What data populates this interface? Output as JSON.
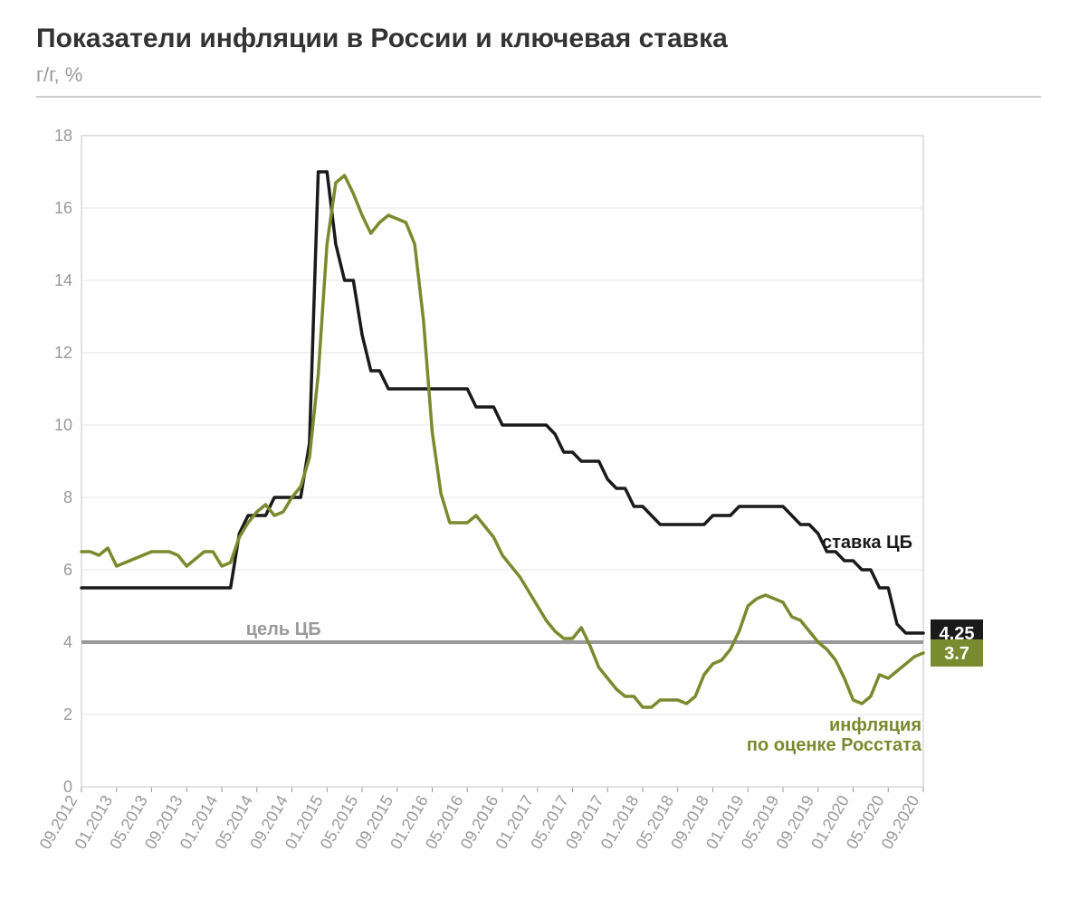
{
  "title": "Показатели инфляции в России и ключевая ставка",
  "subtitle": "г/г, %",
  "chart": {
    "type": "line",
    "background_color": "#ffffff",
    "plot_border_color": "#d9d9d9",
    "grid_color": "#e6e6e6",
    "axis_label_color": "#999999",
    "axis_label_fontsize": 18,
    "title_fontsize": 30,
    "title_color": "#333333",
    "subtitle_fontsize": 22,
    "subtitle_color": "#999999",
    "ylim": [
      0,
      18
    ],
    "ytick_step": 2,
    "yticks": [
      0,
      2,
      4,
      6,
      8,
      10,
      12,
      14,
      16,
      18
    ],
    "x_labels": [
      "09.2012",
      "01.2013",
      "05.2013",
      "09.2013",
      "01.2014",
      "05.2014",
      "09.2014",
      "01.2015",
      "05.2015",
      "09.2015",
      "01.2016",
      "05.2016",
      "09.2016",
      "01.2017",
      "05.2017",
      "09.2017",
      "01.2018",
      "05.2018",
      "09.2018",
      "01.2019",
      "05.2019",
      "09.2019",
      "01.2020",
      "05.2020",
      "09.2020"
    ],
    "target_line": {
      "value": 4,
      "color": "#999999",
      "width": 4,
      "label": "цель ЦБ"
    },
    "series": [
      {
        "name": "ставка ЦБ",
        "label": "ставка ЦБ",
        "color": "#1a1a1a",
        "line_width": 3.5,
        "endpoint_badge_bg": "#1a1a1a",
        "endpoint_badge_text": "4.25",
        "data": [
          {
            "x": "09.2012",
            "y": 5.5
          },
          {
            "x": "10.2012",
            "y": 5.5
          },
          {
            "x": "11.2012",
            "y": 5.5
          },
          {
            "x": "12.2012",
            "y": 5.5
          },
          {
            "x": "01.2013",
            "y": 5.5
          },
          {
            "x": "02.2013",
            "y": 5.5
          },
          {
            "x": "03.2013",
            "y": 5.5
          },
          {
            "x": "04.2013",
            "y": 5.5
          },
          {
            "x": "05.2013",
            "y": 5.5
          },
          {
            "x": "06.2013",
            "y": 5.5
          },
          {
            "x": "07.2013",
            "y": 5.5
          },
          {
            "x": "08.2013",
            "y": 5.5
          },
          {
            "x": "09.2013",
            "y": 5.5
          },
          {
            "x": "10.2013",
            "y": 5.5
          },
          {
            "x": "11.2013",
            "y": 5.5
          },
          {
            "x": "12.2013",
            "y": 5.5
          },
          {
            "x": "01.2014",
            "y": 5.5
          },
          {
            "x": "02.2014",
            "y": 5.5
          },
          {
            "x": "03.2014",
            "y": 7.0
          },
          {
            "x": "04.2014",
            "y": 7.5
          },
          {
            "x": "05.2014",
            "y": 7.5
          },
          {
            "x": "06.2014",
            "y": 7.5
          },
          {
            "x": "07.2014",
            "y": 8.0
          },
          {
            "x": "08.2014",
            "y": 8.0
          },
          {
            "x": "09.2014",
            "y": 8.0
          },
          {
            "x": "10.2014",
            "y": 8.0
          },
          {
            "x": "11.2014",
            "y": 9.5
          },
          {
            "x": "12.2014",
            "y": 17.0
          },
          {
            "x": "01.2015",
            "y": 17.0
          },
          {
            "x": "02.2015",
            "y": 15.0
          },
          {
            "x": "03.2015",
            "y": 14.0
          },
          {
            "x": "04.2015",
            "y": 14.0
          },
          {
            "x": "05.2015",
            "y": 12.5
          },
          {
            "x": "06.2015",
            "y": 11.5
          },
          {
            "x": "07.2015",
            "y": 11.5
          },
          {
            "x": "08.2015",
            "y": 11.0
          },
          {
            "x": "09.2015",
            "y": 11.0
          },
          {
            "x": "10.2015",
            "y": 11.0
          },
          {
            "x": "11.2015",
            "y": 11.0
          },
          {
            "x": "12.2015",
            "y": 11.0
          },
          {
            "x": "01.2016",
            "y": 11.0
          },
          {
            "x": "02.2016",
            "y": 11.0
          },
          {
            "x": "03.2016",
            "y": 11.0
          },
          {
            "x": "04.2016",
            "y": 11.0
          },
          {
            "x": "05.2016",
            "y": 11.0
          },
          {
            "x": "06.2016",
            "y": 10.5
          },
          {
            "x": "07.2016",
            "y": 10.5
          },
          {
            "x": "08.2016",
            "y": 10.5
          },
          {
            "x": "09.2016",
            "y": 10.0
          },
          {
            "x": "10.2016",
            "y": 10.0
          },
          {
            "x": "11.2016",
            "y": 10.0
          },
          {
            "x": "12.2016",
            "y": 10.0
          },
          {
            "x": "01.2017",
            "y": 10.0
          },
          {
            "x": "02.2017",
            "y": 10.0
          },
          {
            "x": "03.2017",
            "y": 9.75
          },
          {
            "x": "04.2017",
            "y": 9.25
          },
          {
            "x": "05.2017",
            "y": 9.25
          },
          {
            "x": "06.2017",
            "y": 9.0
          },
          {
            "x": "07.2017",
            "y": 9.0
          },
          {
            "x": "08.2017",
            "y": 9.0
          },
          {
            "x": "09.2017",
            "y": 8.5
          },
          {
            "x": "10.2017",
            "y": 8.25
          },
          {
            "x": "11.2017",
            "y": 8.25
          },
          {
            "x": "12.2017",
            "y": 7.75
          },
          {
            "x": "01.2018",
            "y": 7.75
          },
          {
            "x": "02.2018",
            "y": 7.5
          },
          {
            "x": "03.2018",
            "y": 7.25
          },
          {
            "x": "04.2018",
            "y": 7.25
          },
          {
            "x": "05.2018",
            "y": 7.25
          },
          {
            "x": "06.2018",
            "y": 7.25
          },
          {
            "x": "07.2018",
            "y": 7.25
          },
          {
            "x": "08.2018",
            "y": 7.25
          },
          {
            "x": "09.2018",
            "y": 7.5
          },
          {
            "x": "10.2018",
            "y": 7.5
          },
          {
            "x": "11.2018",
            "y": 7.5
          },
          {
            "x": "12.2018",
            "y": 7.75
          },
          {
            "x": "01.2019",
            "y": 7.75
          },
          {
            "x": "02.2019",
            "y": 7.75
          },
          {
            "x": "03.2019",
            "y": 7.75
          },
          {
            "x": "04.2019",
            "y": 7.75
          },
          {
            "x": "05.2019",
            "y": 7.75
          },
          {
            "x": "06.2019",
            "y": 7.5
          },
          {
            "x": "07.2019",
            "y": 7.25
          },
          {
            "x": "08.2019",
            "y": 7.25
          },
          {
            "x": "09.2019",
            "y": 7.0
          },
          {
            "x": "10.2019",
            "y": 6.5
          },
          {
            "x": "11.2019",
            "y": 6.5
          },
          {
            "x": "12.2019",
            "y": 6.25
          },
          {
            "x": "01.2020",
            "y": 6.25
          },
          {
            "x": "02.2020",
            "y": 6.0
          },
          {
            "x": "03.2020",
            "y": 6.0
          },
          {
            "x": "04.2020",
            "y": 5.5
          },
          {
            "x": "05.2020",
            "y": 5.5
          },
          {
            "x": "06.2020",
            "y": 4.5
          },
          {
            "x": "07.2020",
            "y": 4.25
          },
          {
            "x": "08.2020",
            "y": 4.25
          },
          {
            "x": "09.2020",
            "y": 4.25
          }
        ]
      },
      {
        "name": "инфляция по оценке Росстата",
        "label": "инфляция\nпо оценке Росстата",
        "color": "#7a8a2e",
        "line_width": 3.5,
        "endpoint_badge_bg": "#7a8a2e",
        "endpoint_badge_text": "3.7",
        "data": [
          {
            "x": "09.2012",
            "y": 6.5
          },
          {
            "x": "10.2012",
            "y": 6.5
          },
          {
            "x": "11.2012",
            "y": 6.4
          },
          {
            "x": "12.2012",
            "y": 6.6
          },
          {
            "x": "01.2013",
            "y": 6.1
          },
          {
            "x": "02.2013",
            "y": 6.2
          },
          {
            "x": "03.2013",
            "y": 6.3
          },
          {
            "x": "04.2013",
            "y": 6.4
          },
          {
            "x": "05.2013",
            "y": 6.5
          },
          {
            "x": "06.2013",
            "y": 6.5
          },
          {
            "x": "07.2013",
            "y": 6.5
          },
          {
            "x": "08.2013",
            "y": 6.4
          },
          {
            "x": "09.2013",
            "y": 6.1
          },
          {
            "x": "10.2013",
            "y": 6.3
          },
          {
            "x": "11.2013",
            "y": 6.5
          },
          {
            "x": "12.2013",
            "y": 6.5
          },
          {
            "x": "01.2014",
            "y": 6.1
          },
          {
            "x": "02.2014",
            "y": 6.2
          },
          {
            "x": "03.2014",
            "y": 6.9
          },
          {
            "x": "04.2014",
            "y": 7.3
          },
          {
            "x": "05.2014",
            "y": 7.6
          },
          {
            "x": "06.2014",
            "y": 7.8
          },
          {
            "x": "07.2014",
            "y": 7.5
          },
          {
            "x": "08.2014",
            "y": 7.6
          },
          {
            "x": "09.2014",
            "y": 8.0
          },
          {
            "x": "10.2014",
            "y": 8.3
          },
          {
            "x": "11.2014",
            "y": 9.1
          },
          {
            "x": "12.2014",
            "y": 11.4
          },
          {
            "x": "01.2015",
            "y": 15.0
          },
          {
            "x": "02.2015",
            "y": 16.7
          },
          {
            "x": "03.2015",
            "y": 16.9
          },
          {
            "x": "04.2015",
            "y": 16.4
          },
          {
            "x": "05.2015",
            "y": 15.8
          },
          {
            "x": "06.2015",
            "y": 15.3
          },
          {
            "x": "07.2015",
            "y": 15.6
          },
          {
            "x": "08.2015",
            "y": 15.8
          },
          {
            "x": "09.2015",
            "y": 15.7
          },
          {
            "x": "10.2015",
            "y": 15.6
          },
          {
            "x": "11.2015",
            "y": 15.0
          },
          {
            "x": "12.2015",
            "y": 12.9
          },
          {
            "x": "01.2016",
            "y": 9.8
          },
          {
            "x": "02.2016",
            "y": 8.1
          },
          {
            "x": "03.2016",
            "y": 7.3
          },
          {
            "x": "04.2016",
            "y": 7.3
          },
          {
            "x": "05.2016",
            "y": 7.3
          },
          {
            "x": "06.2016",
            "y": 7.5
          },
          {
            "x": "07.2016",
            "y": 7.2
          },
          {
            "x": "08.2016",
            "y": 6.9
          },
          {
            "x": "09.2016",
            "y": 6.4
          },
          {
            "x": "10.2016",
            "y": 6.1
          },
          {
            "x": "11.2016",
            "y": 5.8
          },
          {
            "x": "12.2016",
            "y": 5.4
          },
          {
            "x": "01.2017",
            "y": 5.0
          },
          {
            "x": "02.2017",
            "y": 4.6
          },
          {
            "x": "03.2017",
            "y": 4.3
          },
          {
            "x": "04.2017",
            "y": 4.1
          },
          {
            "x": "05.2017",
            "y": 4.1
          },
          {
            "x": "06.2017",
            "y": 4.4
          },
          {
            "x": "07.2017",
            "y": 3.9
          },
          {
            "x": "08.2017",
            "y": 3.3
          },
          {
            "x": "09.2017",
            "y": 3.0
          },
          {
            "x": "10.2017",
            "y": 2.7
          },
          {
            "x": "11.2017",
            "y": 2.5
          },
          {
            "x": "12.2017",
            "y": 2.5
          },
          {
            "x": "01.2018",
            "y": 2.2
          },
          {
            "x": "02.2018",
            "y": 2.2
          },
          {
            "x": "03.2018",
            "y": 2.4
          },
          {
            "x": "04.2018",
            "y": 2.4
          },
          {
            "x": "05.2018",
            "y": 2.4
          },
          {
            "x": "06.2018",
            "y": 2.3
          },
          {
            "x": "07.2018",
            "y": 2.5
          },
          {
            "x": "08.2018",
            "y": 3.1
          },
          {
            "x": "09.2018",
            "y": 3.4
          },
          {
            "x": "10.2018",
            "y": 3.5
          },
          {
            "x": "11.2018",
            "y": 3.8
          },
          {
            "x": "12.2018",
            "y": 4.3
          },
          {
            "x": "01.2019",
            "y": 5.0
          },
          {
            "x": "02.2019",
            "y": 5.2
          },
          {
            "x": "03.2019",
            "y": 5.3
          },
          {
            "x": "04.2019",
            "y": 5.2
          },
          {
            "x": "05.2019",
            "y": 5.1
          },
          {
            "x": "06.2019",
            "y": 4.7
          },
          {
            "x": "07.2019",
            "y": 4.6
          },
          {
            "x": "08.2019",
            "y": 4.3
          },
          {
            "x": "09.2019",
            "y": 4.0
          },
          {
            "x": "10.2019",
            "y": 3.8
          },
          {
            "x": "11.2019",
            "y": 3.5
          },
          {
            "x": "12.2019",
            "y": 3.0
          },
          {
            "x": "01.2020",
            "y": 2.4
          },
          {
            "x": "02.2020",
            "y": 2.3
          },
          {
            "x": "03.2020",
            "y": 2.5
          },
          {
            "x": "04.2020",
            "y": 3.1
          },
          {
            "x": "05.2020",
            "y": 3.0
          },
          {
            "x": "06.2020",
            "y": 3.2
          },
          {
            "x": "07.2020",
            "y": 3.4
          },
          {
            "x": "08.2020",
            "y": 3.6
          },
          {
            "x": "09.2020",
            "y": 3.7
          }
        ]
      }
    ]
  }
}
